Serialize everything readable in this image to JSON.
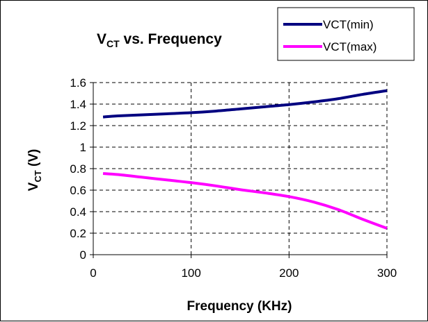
{
  "chart_data": {
    "type": "line",
    "title": "VCT vs. Frequency",
    "title_main": "V",
    "title_sub": "CT",
    "title_rest": " vs. Frequency",
    "xlabel": "Frequency (KHz)",
    "ylabel_main": "V",
    "ylabel_sub": "CT",
    "ylabel_rest": " (V)",
    "xlim": [
      0,
      300
    ],
    "ylim": [
      0,
      1.6
    ],
    "xticks": [
      "0",
      "100",
      "200",
      "300"
    ],
    "yticks": [
      "0",
      "0.2",
      "0.4",
      "0.6",
      "0.8",
      "1",
      "1.2",
      "1.4",
      "1.6"
    ],
    "grid": true,
    "legend_position": "top-right",
    "series": [
      {
        "name": "VCT(min)",
        "color": "#000080",
        "x": [
          10,
          25,
          50,
          75,
          100,
          125,
          150,
          175,
          200,
          225,
          250,
          275,
          300
        ],
        "y": [
          1.28,
          1.29,
          1.3,
          1.31,
          1.32,
          1.335,
          1.355,
          1.375,
          1.395,
          1.42,
          1.45,
          1.49,
          1.525
        ]
      },
      {
        "name": "VCT(max)",
        "color": "#ff00ff",
        "x": [
          10,
          25,
          50,
          75,
          100,
          125,
          150,
          175,
          200,
          225,
          250,
          275,
          300
        ],
        "y": [
          0.755,
          0.745,
          0.72,
          0.695,
          0.67,
          0.64,
          0.605,
          0.575,
          0.54,
          0.49,
          0.42,
          0.33,
          0.245
        ]
      }
    ]
  }
}
